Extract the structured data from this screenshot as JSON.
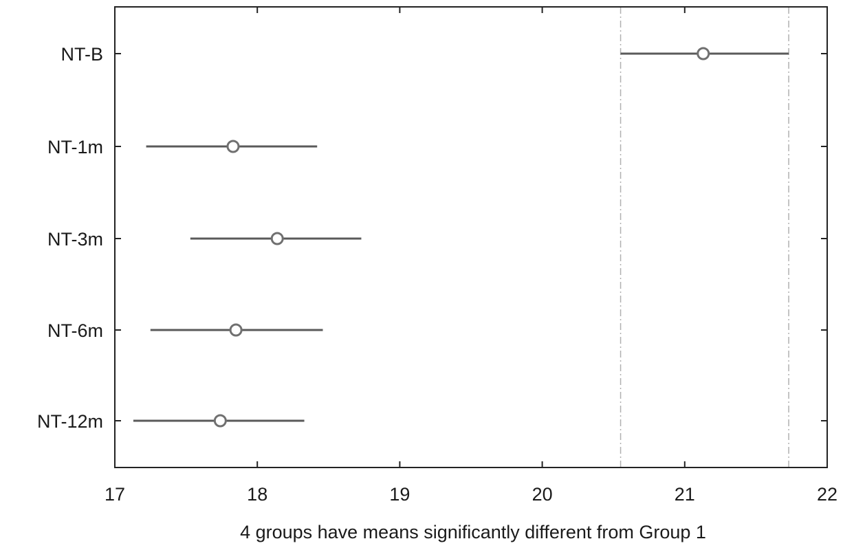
{
  "chart_data": {
    "type": "scatter",
    "title": "",
    "xlabel": "4 groups have means significantly different from Group 1",
    "ylabel": "",
    "xlim": [
      17,
      22
    ],
    "xticks": [
      17,
      18,
      19,
      20,
      21,
      22
    ],
    "xtick_labels": [
      "17",
      "18",
      "19",
      "20",
      "21",
      "22"
    ],
    "categories": [
      "NT-B",
      "NT-1m",
      "NT-3m",
      "NT-6m",
      "NT-12m"
    ],
    "points": [
      {
        "label": "NT-B",
        "mean": 21.13,
        "lower": 20.55,
        "upper": 21.73
      },
      {
        "label": "NT-1m",
        "mean": 17.83,
        "lower": 17.22,
        "upper": 18.42
      },
      {
        "label": "NT-3m",
        "mean": 18.14,
        "lower": 17.53,
        "upper": 18.73
      },
      {
        "label": "NT-6m",
        "mean": 17.85,
        "lower": 17.25,
        "upper": 18.46
      },
      {
        "label": "NT-12m",
        "mean": 17.74,
        "lower": 17.13,
        "upper": 18.33
      }
    ],
    "reference_lines": [
      20.55,
      21.73
    ],
    "grid": false,
    "legend": "none",
    "colors": {
      "interval": "#5a5a5a",
      "marker": "#707070",
      "axis": "#222222",
      "reference": "#b0b0b0"
    }
  }
}
